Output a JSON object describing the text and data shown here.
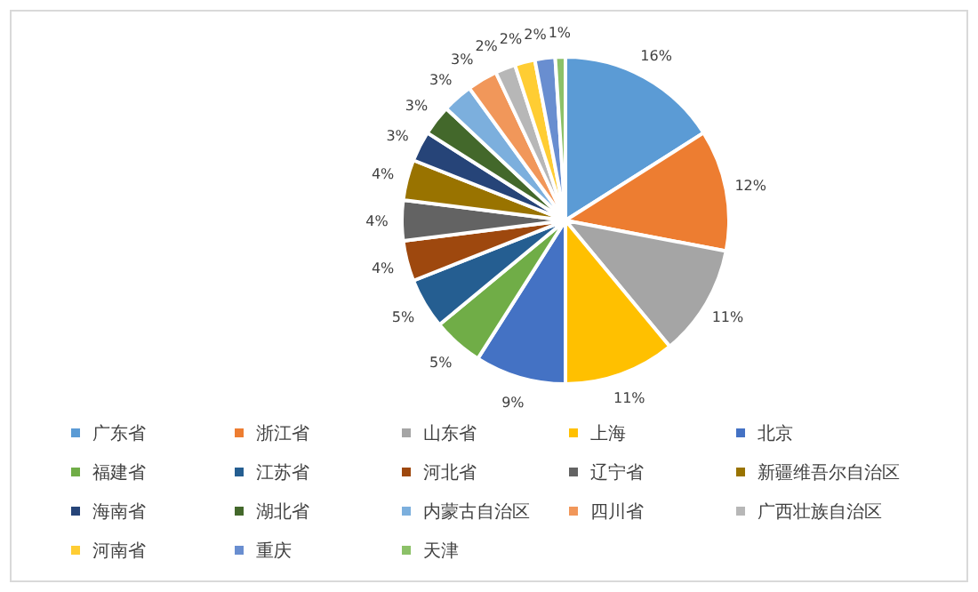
{
  "chart_data": {
    "type": "pie",
    "categories": [
      "广东省",
      "浙江省",
      "山东省",
      "上海",
      "北京",
      "福建省",
      "江苏省",
      "河北省",
      "辽宁省",
      "新疆维吾尔自治区",
      "海南省",
      "湖北省",
      "内蒙古自治区",
      "四川省",
      "广西壮族自治区",
      "河南省",
      "重庆",
      "天津"
    ],
    "values": [
      16,
      12,
      11,
      11,
      9,
      5,
      5,
      4,
      4,
      4,
      3,
      3,
      3,
      3,
      2,
      2,
      2,
      1
    ],
    "colors": [
      "#5b9bd5",
      "#ed7d31",
      "#a5a5a5",
      "#ffc000",
      "#4472c4",
      "#70ad47",
      "#255e91",
      "#9e480e",
      "#636363",
      "#997300",
      "#264478",
      "#43682b",
      "#7cafdd",
      "#f1975a",
      "#b7b7b7",
      "#ffcd33",
      "#698ed0",
      "#8cc168"
    ],
    "value_labels": [
      "16%",
      "12%",
      "11%",
      "11%",
      "9%",
      "5%",
      "5%",
      "4%",
      "4%",
      "4%",
      "3%",
      "3%",
      "3%",
      "3%",
      "2%",
      "2%",
      "2%",
      "1%"
    ],
    "legend": "bottom"
  }
}
